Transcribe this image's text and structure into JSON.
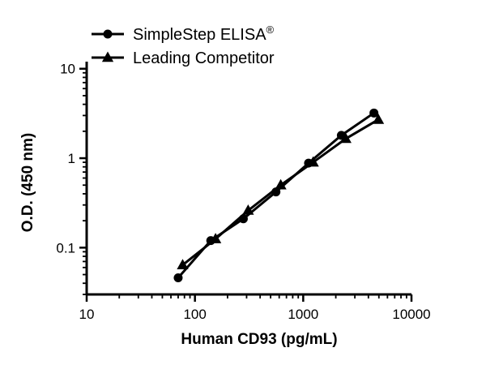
{
  "chart_data": {
    "type": "line",
    "title": "",
    "xlabel": "Human CD93 (pg/mL)",
    "ylabel": "O.D. (450 nm)",
    "xscale": "log",
    "yscale": "log",
    "xlim": [
      10,
      10000
    ],
    "ylim": [
      0.03,
      12
    ],
    "x_ticks": [
      10,
      100,
      1000,
      10000
    ],
    "x_tick_labels": [
      "10",
      "100",
      "1000",
      "10000"
    ],
    "y_ticks": [
      0.1,
      1,
      10
    ],
    "y_tick_labels": [
      "0.1",
      "1",
      "10"
    ],
    "grid": false,
    "legend_position": "top-left",
    "series": [
      {
        "name": "SimpleStep ELISA",
        "name_superscript": "®",
        "marker": "circle",
        "color": "#000000",
        "x": [
          70,
          140,
          280,
          560,
          1120,
          2250,
          4500
        ],
        "y": [
          0.046,
          0.12,
          0.21,
          0.42,
          0.88,
          1.8,
          3.2
        ]
      },
      {
        "name": "Leading Competitor",
        "name_superscript": "",
        "marker": "triangle",
        "color": "#000000",
        "x": [
          77,
          155,
          310,
          620,
          1235,
          2470,
          4940
        ],
        "y": [
          0.064,
          0.125,
          0.26,
          0.5,
          0.9,
          1.65,
          2.7
        ]
      }
    ]
  }
}
